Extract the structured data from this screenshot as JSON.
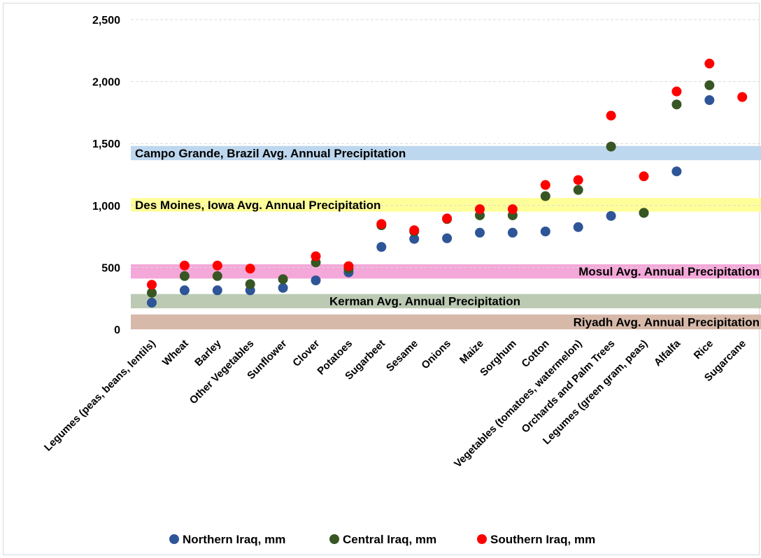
{
  "chart_data": {
    "type": "scatter",
    "title": "",
    "xlabel": "",
    "ylabel": "",
    "ylim": [
      0,
      2500
    ],
    "yticks": [
      0,
      500,
      1000,
      1500,
      2000,
      2500
    ],
    "ytick_labels": [
      "0",
      "500",
      "1,000",
      "1,500",
      "2,000",
      "2,500"
    ],
    "grid": true,
    "legend_position": "bottom",
    "categories": [
      "Legumes (peas, beans, lentils)",
      "Wheat",
      "Barley",
      "Other Vegetables",
      "Sunflower",
      "Clover",
      "Potatoes",
      "Sugarbeet",
      "Sesame",
      "Onions",
      "Maize",
      "Sorghum",
      "Cotton",
      "Vegetables (tomatoes, watermelon)",
      "Orchards and Palm Trees",
      "Legumes (green gram, peas)",
      "Alfalfa",
      "Rice",
      "Sugarcane"
    ],
    "series": [
      {
        "name": "Northern Iraq, mm",
        "color": "#2e5597",
        "values": [
          215,
          315,
          315,
          315,
          335,
          395,
          460,
          665,
          730,
          735,
          780,
          780,
          790,
          825,
          915,
          940,
          1275,
          1850,
          null
        ]
      },
      {
        "name": "Central Iraq, mm",
        "color": "#375623",
        "values": [
          295,
          430,
          430,
          365,
          405,
          540,
          490,
          840,
          790,
          890,
          920,
          920,
          1075,
          1125,
          1475,
          940,
          1815,
          1970,
          null
        ]
      },
      {
        "name": "Southern Iraq, mm",
        "color": "#ff0000",
        "values": [
          360,
          515,
          515,
          490,
          null,
          590,
          510,
          850,
          800,
          895,
          970,
          970,
          1165,
          1205,
          1725,
          1235,
          1920,
          2145,
          1875
        ]
      }
    ],
    "bands": [
      {
        "label": "Campo Grande, Brazil Avg.  Annual Precipitation",
        "from": 1365,
        "to": 1480,
        "color": "#bdd7ee",
        "label_align": "left"
      },
      {
        "label": "Des Moines, Iowa Avg.  Annual Precipitation",
        "from": 950,
        "to": 1060,
        "color": "#ffff99",
        "label_align": "left"
      },
      {
        "label": "Mosul Avg.  Annual Precipitation",
        "from": 410,
        "to": 525,
        "color": "#f4a7d9",
        "label_align": "right"
      },
      {
        "label": "Kerman Avg.  Annual Precipitation",
        "from": 170,
        "to": 285,
        "color": "#bccab4",
        "label_align": "center"
      },
      {
        "label": "Riyadh Avg.  Annual Precipitation",
        "from": 0,
        "to": 120,
        "color": "#d7b9aa",
        "label_align": "right"
      }
    ]
  }
}
